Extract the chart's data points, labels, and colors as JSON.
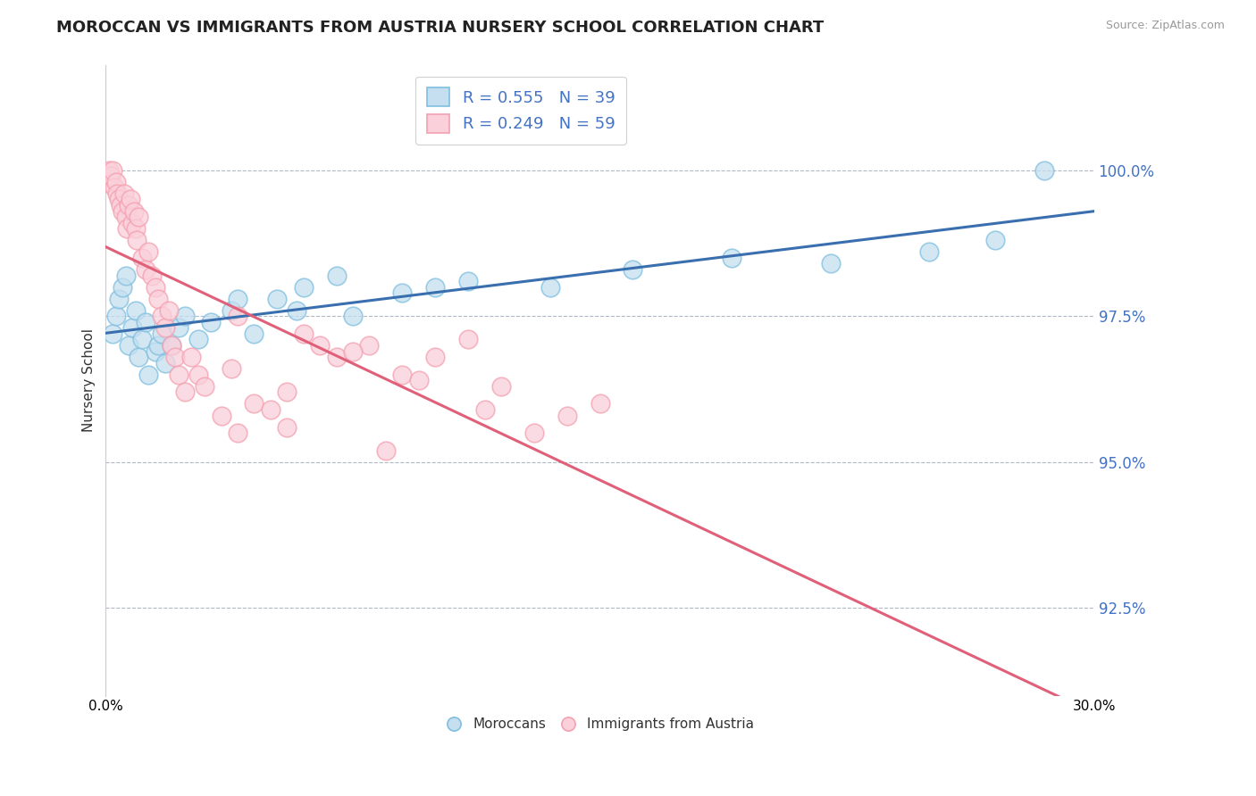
{
  "title": "MOROCCAN VS IMMIGRANTS FROM AUSTRIA NURSERY SCHOOL CORRELATION CHART",
  "source": "Source: ZipAtlas.com",
  "ylabel": "Nursery School",
  "y_ticks": [
    92.5,
    95.0,
    97.5,
    100.0
  ],
  "y_tick_labels": [
    "92.5%",
    "95.0%",
    "97.5%",
    "100.0%"
  ],
  "x_lim": [
    0.0,
    30.0
  ],
  "y_lim": [
    91.0,
    101.8
  ],
  "blue_color": "#7fbfdf",
  "pink_color": "#f4a0b0",
  "blue_fill_color": "#c5dff0",
  "pink_fill_color": "#fad0da",
  "blue_line_color": "#3a6faf",
  "pink_line_color": "#e0607a",
  "background_color": "#ffffff",
  "grid_color": "#b0b8c8",
  "title_fontsize": 13,
  "ytick_color": "#4472c4",
  "legend_text_color": "#4472c4",
  "blue_scatter_x": [
    0.2,
    0.3,
    0.4,
    0.5,
    0.6,
    0.7,
    0.8,
    0.9,
    1.0,
    1.1,
    1.2,
    1.3,
    1.5,
    1.6,
    1.7,
    1.8,
    2.0,
    2.2,
    2.4,
    2.8,
    3.2,
    3.8,
    4.5,
    5.2,
    6.0,
    7.5,
    9.0,
    11.0,
    13.5,
    16.0,
    19.0,
    22.0,
    25.0,
    27.0,
    28.5,
    4.0,
    5.8,
    7.0,
    10.0
  ],
  "blue_scatter_y": [
    97.2,
    97.5,
    97.8,
    98.0,
    98.2,
    97.0,
    97.3,
    97.6,
    96.8,
    97.1,
    97.4,
    96.5,
    96.9,
    97.0,
    97.2,
    96.7,
    97.0,
    97.3,
    97.5,
    97.1,
    97.4,
    97.6,
    97.2,
    97.8,
    98.0,
    97.5,
    97.9,
    98.1,
    98.0,
    98.3,
    98.5,
    98.4,
    98.6,
    98.8,
    100.0,
    97.8,
    97.6,
    98.2,
    98.0
  ],
  "pink_scatter_x": [
    0.05,
    0.1,
    0.15,
    0.2,
    0.25,
    0.3,
    0.35,
    0.4,
    0.45,
    0.5,
    0.55,
    0.6,
    0.65,
    0.7,
    0.75,
    0.8,
    0.85,
    0.9,
    0.95,
    1.0,
    1.1,
    1.2,
    1.3,
    1.4,
    1.5,
    1.6,
    1.7,
    1.8,
    1.9,
    2.0,
    2.1,
    2.2,
    2.4,
    2.6,
    2.8,
    3.0,
    3.5,
    4.0,
    4.5,
    5.0,
    5.5,
    6.0,
    7.0,
    8.0,
    9.0,
    10.0,
    11.0,
    12.0,
    13.0,
    14.0,
    15.0,
    4.0,
    5.5,
    7.5,
    9.5,
    11.5,
    6.5,
    3.8,
    8.5
  ],
  "pink_scatter_y": [
    99.8,
    100.0,
    99.9,
    100.0,
    99.7,
    99.8,
    99.6,
    99.5,
    99.4,
    99.3,
    99.6,
    99.2,
    99.0,
    99.4,
    99.5,
    99.1,
    99.3,
    99.0,
    98.8,
    99.2,
    98.5,
    98.3,
    98.6,
    98.2,
    98.0,
    97.8,
    97.5,
    97.3,
    97.6,
    97.0,
    96.8,
    96.5,
    96.2,
    96.8,
    96.5,
    96.3,
    95.8,
    95.5,
    96.0,
    95.9,
    95.6,
    97.2,
    96.8,
    97.0,
    96.5,
    96.8,
    97.1,
    96.3,
    95.5,
    95.8,
    96.0,
    97.5,
    96.2,
    96.9,
    96.4,
    95.9,
    97.0,
    96.6,
    95.2
  ]
}
